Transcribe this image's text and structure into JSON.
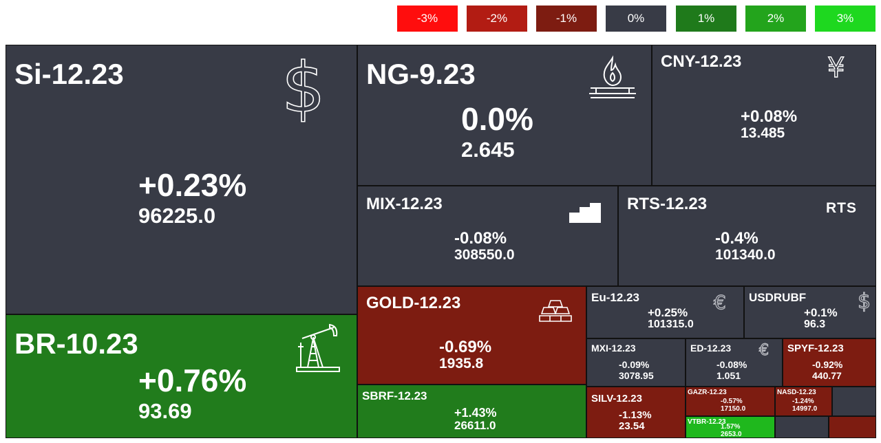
{
  "legend": [
    {
      "label": "-3%",
      "color": "#ff0d0d"
    },
    {
      "label": "-2%",
      "color": "#b21c13"
    },
    {
      "label": "-1%",
      "color": "#7d1c11"
    },
    {
      "label": "0%",
      "color": "#383b46"
    },
    {
      "label": "1%",
      "color": "#1f7a1b"
    },
    {
      "label": "2%",
      "color": "#23a41c"
    },
    {
      "label": "3%",
      "color": "#1ed81f"
    }
  ],
  "colors": {
    "neutral": "#383b46",
    "green": "#217c1c",
    "brightgreen": "#1fb81d",
    "darkred": "#7d1c11",
    "red": "#a21a0f",
    "border": "#111111"
  },
  "tiles": {
    "si": {
      "name": "Si-12.23",
      "change": "+0.23%",
      "price": "96225.0",
      "icon": "dollar-icon"
    },
    "br": {
      "name": "BR-10.23",
      "change": "+0.76%",
      "price": "93.69",
      "icon": "oil-pump-icon"
    },
    "ng": {
      "name": "NG-9.23",
      "change": "0.0%",
      "price": "2.645",
      "icon": "gas-flame-icon"
    },
    "cny": {
      "name": "CNY-12.23",
      "change": "+0.08%",
      "price": "13.485",
      "icon": "yen-icon"
    },
    "mix": {
      "name": "MIX-12.23",
      "change": "-0.08%",
      "price": "308550.0",
      "icon": "index-bars-icon"
    },
    "rts": {
      "name": "RTS-12.23",
      "change": "-0.4%",
      "price": "101340.0",
      "icon": "rts-logo-icon",
      "logo": "RTS"
    },
    "gold": {
      "name": "GOLD-12.23",
      "change": "-0.69%",
      "price": "1935.8",
      "icon": "gold-bars-icon"
    },
    "sbrf": {
      "name": "SBRF-12.23",
      "change": "+1.43%",
      "price": "26611.0"
    },
    "eu": {
      "name": "Eu-12.23",
      "change": "+0.25%",
      "price": "101315.0",
      "icon": "euro-icon"
    },
    "usdrub": {
      "name": "USDRUBF",
      "change": "+0.1%",
      "price": "96.3",
      "icon": "dollar-icon"
    },
    "mxi": {
      "name": "MXI-12.23",
      "change": "-0.09%",
      "price": "3078.95"
    },
    "ed": {
      "name": "ED-12.23",
      "change": "-0.08%",
      "price": "1.051",
      "icon": "euro-icon"
    },
    "spyf": {
      "name": "SPYF-12.23",
      "change": "-0.92%",
      "price": "440.77"
    },
    "silv": {
      "name": "SILV-12.23",
      "change": "-1.13%",
      "price": "23.54"
    },
    "gazr": {
      "name": "GAZR-12.23",
      "change": "-0.57%",
      "price": "17150.0"
    },
    "nasd": {
      "name": "NASD-12.23",
      "change": "-1.24%",
      "price": "14997.0"
    },
    "vtbr": {
      "name": "VTBR-12.23",
      "change": "1.57%",
      "price": "2653.0"
    }
  },
  "icon_glyphs": {
    "dollar": "$",
    "yen": "¥",
    "euro": "€"
  }
}
